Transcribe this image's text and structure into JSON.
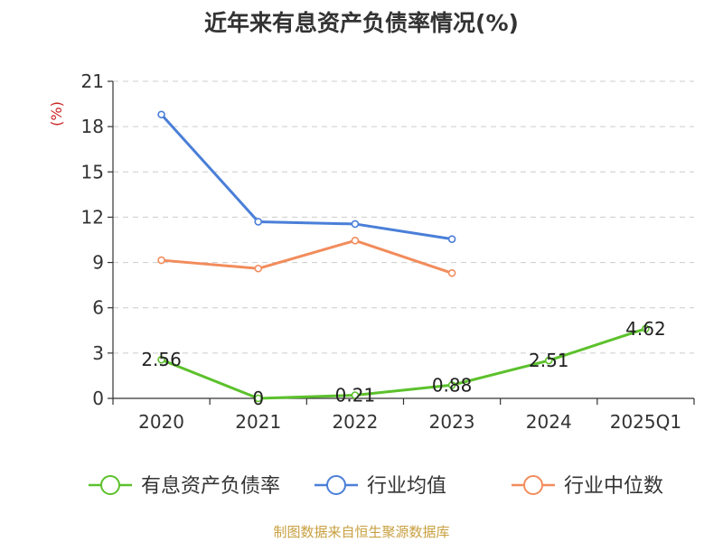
{
  "chart_data": {
    "type": "line",
    "title": "近年来有息资产负债率情况(%)",
    "ylabel": "(%)",
    "xlabel": "",
    "categories": [
      "2020",
      "2021",
      "2022",
      "2023",
      "2024",
      "2025Q1"
    ],
    "ylim": [
      0,
      21
    ],
    "yticks": [
      0,
      3,
      6,
      9,
      12,
      15,
      18,
      21
    ],
    "grid": true,
    "legend_position": "bottom",
    "series": [
      {
        "name": "有息资产负债率",
        "color": "#5cc12c",
        "values": [
          2.56,
          0,
          0.21,
          0.88,
          2.51,
          4.62
        ],
        "labels": [
          "2.56",
          "0",
          "0.21",
          "0.88",
          "2.51",
          "4.62"
        ],
        "show_labels": true
      },
      {
        "name": "行业均值",
        "color": "#4a7fd8",
        "values": [
          18.8,
          11.7,
          11.55,
          10.55,
          null,
          null
        ],
        "show_labels": false
      },
      {
        "name": "行业中位数",
        "color": "#f28c5c",
        "values": [
          9.15,
          8.6,
          10.45,
          8.3,
          null,
          null
        ],
        "show_labels": false
      }
    ]
  },
  "source": "制图数据来自恒生聚源数据库"
}
